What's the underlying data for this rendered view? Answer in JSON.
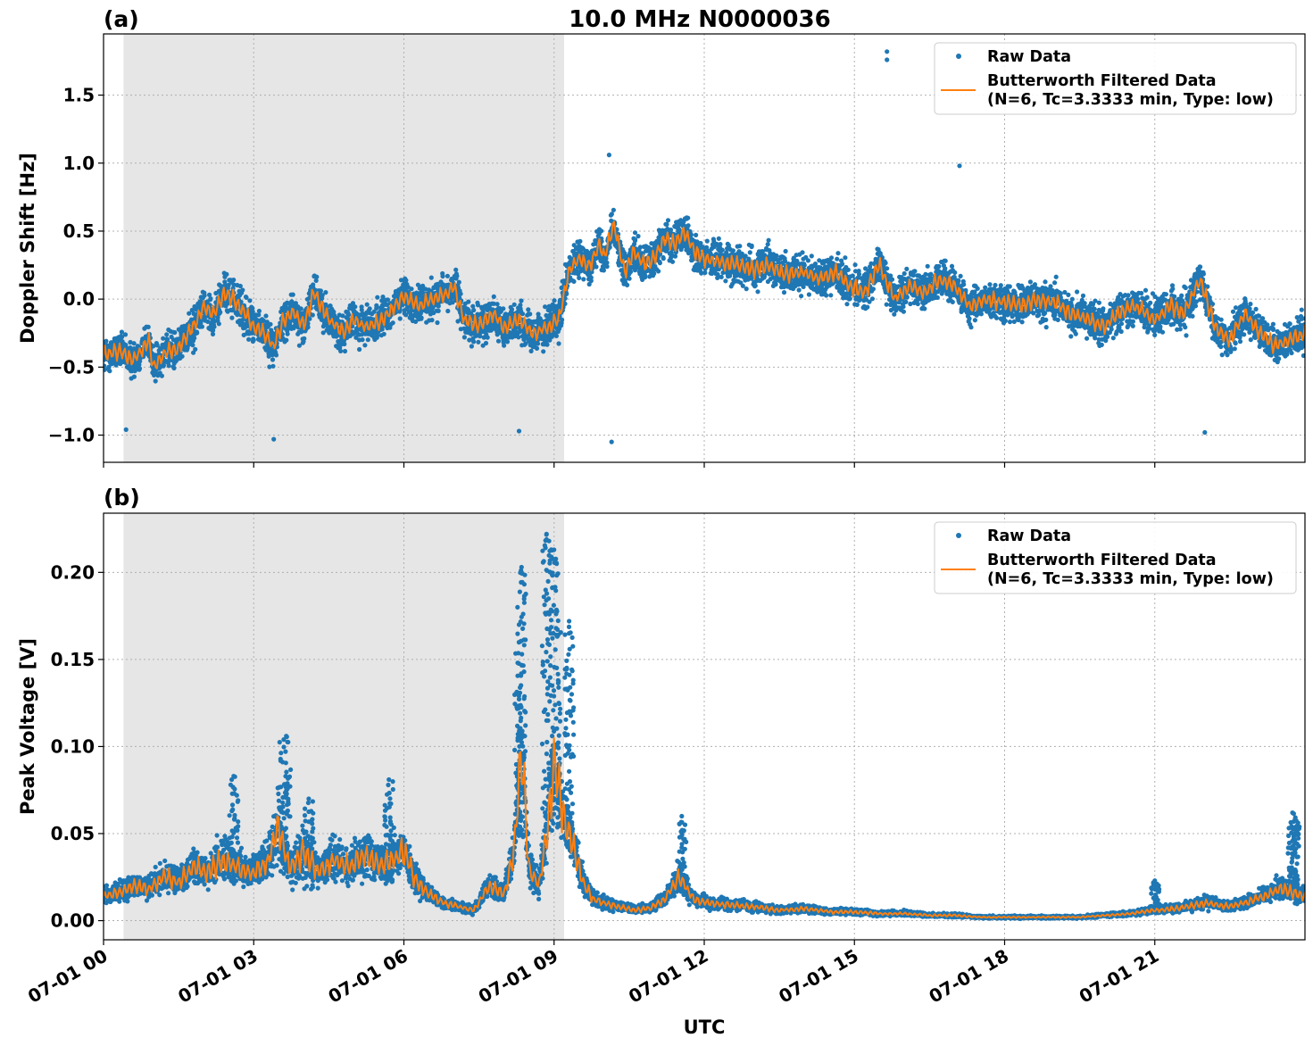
{
  "figure": {
    "title": "10.0 MHz N0000036",
    "xlabel": "UTC"
  },
  "colors": {
    "raw": "#1f77b4",
    "filtered": "#ff7f0e",
    "shade": "#e6e6e6"
  },
  "chart_data": [
    {
      "type": "scatter",
      "panel_label": "(a)",
      "ylabel": "Doppler Shift [Hz]",
      "xlim_hours": [
        0,
        24
      ],
      "ylim": [
        -1.2,
        1.95
      ],
      "yticks": [
        -1.0,
        -0.5,
        0.0,
        0.5,
        1.0,
        1.5
      ],
      "ytick_labels": [
        "−1.0",
        "−0.5",
        "0.0",
        "0.5",
        "1.0",
        "1.5"
      ],
      "shaded_interval_hours": [
        0.4,
        9.2
      ],
      "grid": true,
      "legend_position": "top-right",
      "legend": [
        "Raw Data",
        "Butterworth Filtered Data",
        "(N=6, Tc=3.3333 min, Type: low)"
      ],
      "series": [
        {
          "name": "Raw Data",
          "kind": "scatter",
          "spread": 0.22,
          "outliers": [
            [
              15.65,
              1.82
            ],
            [
              15.65,
              1.76
            ],
            [
              3.4,
              -1.03
            ],
            [
              10.15,
              -1.05
            ],
            [
              22.0,
              -0.98
            ],
            [
              17.1,
              0.98
            ],
            [
              10.1,
              1.06
            ],
            [
              8.3,
              -0.97
            ],
            [
              0.45,
              -0.96
            ]
          ]
        },
        {
          "name": "Butterworth Filtered Data",
          "kind": "line",
          "x_hours": [
            0,
            0.3,
            0.6,
            0.9,
            1.0,
            1.2,
            1.5,
            1.8,
            2.0,
            2.2,
            2.4,
            2.6,
            2.8,
            3.0,
            3.2,
            3.4,
            3.6,
            3.8,
            4.0,
            4.2,
            4.5,
            4.8,
            5.0,
            5.2,
            5.5,
            5.8,
            6.0,
            6.3,
            6.6,
            6.9,
            7.0,
            7.2,
            7.5,
            7.8,
            8.0,
            8.3,
            8.6,
            8.9,
            9.1,
            9.3,
            9.5,
            9.7,
            9.9,
            10.0,
            10.2,
            10.4,
            10.6,
            10.8,
            11.0,
            11.2,
            11.4,
            11.6,
            11.8,
            12.0,
            12.3,
            12.6,
            13.0,
            13.3,
            13.6,
            14.0,
            14.3,
            14.6,
            14.9,
            15.2,
            15.5,
            15.8,
            16.1,
            16.4,
            16.7,
            17.0,
            17.3,
            17.6,
            18.0,
            18.3,
            18.6,
            19.0,
            19.3,
            19.6,
            20.0,
            20.3,
            20.6,
            21.0,
            21.3,
            21.6,
            21.9,
            22.2,
            22.5,
            22.8,
            23.1,
            23.4,
            23.7,
            24.0
          ],
          "y": [
            -0.42,
            -0.38,
            -0.45,
            -0.3,
            -0.5,
            -0.4,
            -0.35,
            -0.2,
            -0.05,
            -0.12,
            0.05,
            0.0,
            -0.1,
            -0.2,
            -0.25,
            -0.35,
            -0.15,
            -0.1,
            -0.2,
            0.05,
            -0.15,
            -0.25,
            -0.15,
            -0.2,
            -0.18,
            -0.05,
            0.02,
            -0.05,
            0.0,
            0.05,
            0.1,
            -0.15,
            -0.2,
            -0.1,
            -0.22,
            -0.15,
            -0.25,
            -0.2,
            -0.15,
            0.2,
            0.3,
            0.25,
            0.4,
            0.3,
            0.55,
            0.2,
            0.35,
            0.25,
            0.3,
            0.45,
            0.4,
            0.5,
            0.35,
            0.3,
            0.28,
            0.25,
            0.22,
            0.25,
            0.18,
            0.2,
            0.15,
            0.2,
            0.1,
            0.05,
            0.25,
            0.0,
            0.1,
            0.05,
            0.15,
            0.1,
            -0.05,
            0.0,
            -0.02,
            -0.05,
            0.0,
            -0.02,
            -0.1,
            -0.15,
            -0.2,
            -0.1,
            -0.05,
            -0.15,
            -0.05,
            -0.1,
            0.15,
            -0.2,
            -0.3,
            -0.1,
            -0.25,
            -0.35,
            -0.3,
            -0.25
          ]
        }
      ]
    },
    {
      "type": "scatter",
      "panel_label": "(b)",
      "ylabel": "Peak Voltage [V]",
      "xlim_hours": [
        0,
        24
      ],
      "ylim": [
        -0.011,
        0.234
      ],
      "yticks": [
        0.0,
        0.05,
        0.1,
        0.15,
        0.2
      ],
      "ytick_labels": [
        "0.00",
        "0.05",
        "0.10",
        "0.15",
        "0.20"
      ],
      "xticks_hours": [
        0,
        3,
        6,
        9,
        12,
        15,
        18,
        21
      ],
      "xtick_labels": [
        "07-01 00",
        "07-01 03",
        "07-01 06",
        "07-01 09",
        "07-01 12",
        "07-01 15",
        "07-01 18",
        "07-01 21"
      ],
      "shaded_interval_hours": [
        0.4,
        9.2
      ],
      "grid": true,
      "legend_position": "top-right",
      "legend": [
        "Raw Data",
        "Butterworth Filtered Data",
        "(N=6, Tc=3.3333 min, Type: low)"
      ],
      "series": [
        {
          "name": "Raw Data",
          "kind": "scatter",
          "spikes": [
            [
              8.35,
              0.203
            ],
            [
              8.35,
              0.2
            ],
            [
              8.3,
              0.17
            ],
            [
              8.85,
              0.222
            ],
            [
              8.9,
              0.218
            ],
            [
              9.0,
              0.213
            ],
            [
              9.05,
              0.205
            ],
            [
              9.3,
              0.172
            ],
            [
              9.3,
              0.165
            ],
            [
              3.65,
              0.106
            ],
            [
              3.6,
              0.104
            ],
            [
              2.6,
              0.083
            ],
            [
              4.1,
              0.07
            ],
            [
              5.7,
              0.081
            ],
            [
              11.55,
              0.06
            ],
            [
              23.75,
              0.062
            ],
            [
              23.8,
              0.058
            ],
            [
              21.0,
              0.023
            ]
          ]
        },
        {
          "name": "Butterworth Filtered Data",
          "kind": "line",
          "x_hours": [
            0,
            0.3,
            0.6,
            0.9,
            1.2,
            1.5,
            1.8,
            2.1,
            2.4,
            2.7,
            3.0,
            3.3,
            3.5,
            3.7,
            4.0,
            4.3,
            4.6,
            4.9,
            5.2,
            5.5,
            5.8,
            6.0,
            6.2,
            6.5,
            6.8,
            7.1,
            7.4,
            7.7,
            8.0,
            8.2,
            8.35,
            8.5,
            8.7,
            8.9,
            9.0,
            9.2,
            9.4,
            9.6,
            9.8,
            10.0,
            10.3,
            10.6,
            10.9,
            11.2,
            11.5,
            11.8,
            12.1,
            12.5,
            13.0,
            13.5,
            14.0,
            14.5,
            15.0,
            15.5,
            16.0,
            16.5,
            17.0,
            17.5,
            18.0,
            18.5,
            19.0,
            19.5,
            20.0,
            20.5,
            21.0,
            21.5,
            22.0,
            22.5,
            23.0,
            23.5,
            24.0
          ],
          "y": [
            0.014,
            0.016,
            0.02,
            0.018,
            0.025,
            0.022,
            0.03,
            0.028,
            0.035,
            0.03,
            0.027,
            0.035,
            0.055,
            0.03,
            0.04,
            0.028,
            0.035,
            0.03,
            0.038,
            0.032,
            0.035,
            0.04,
            0.025,
            0.015,
            0.01,
            0.008,
            0.006,
            0.02,
            0.015,
            0.04,
            0.1,
            0.03,
            0.02,
            0.06,
            0.09,
            0.06,
            0.04,
            0.02,
            0.012,
            0.01,
            0.008,
            0.006,
            0.007,
            0.012,
            0.025,
            0.012,
            0.01,
            0.009,
            0.008,
            0.006,
            0.007,
            0.005,
            0.005,
            0.004,
            0.004,
            0.003,
            0.003,
            0.002,
            0.002,
            0.002,
            0.002,
            0.002,
            0.003,
            0.004,
            0.006,
            0.007,
            0.01,
            0.008,
            0.012,
            0.018,
            0.014
          ]
        }
      ]
    }
  ]
}
